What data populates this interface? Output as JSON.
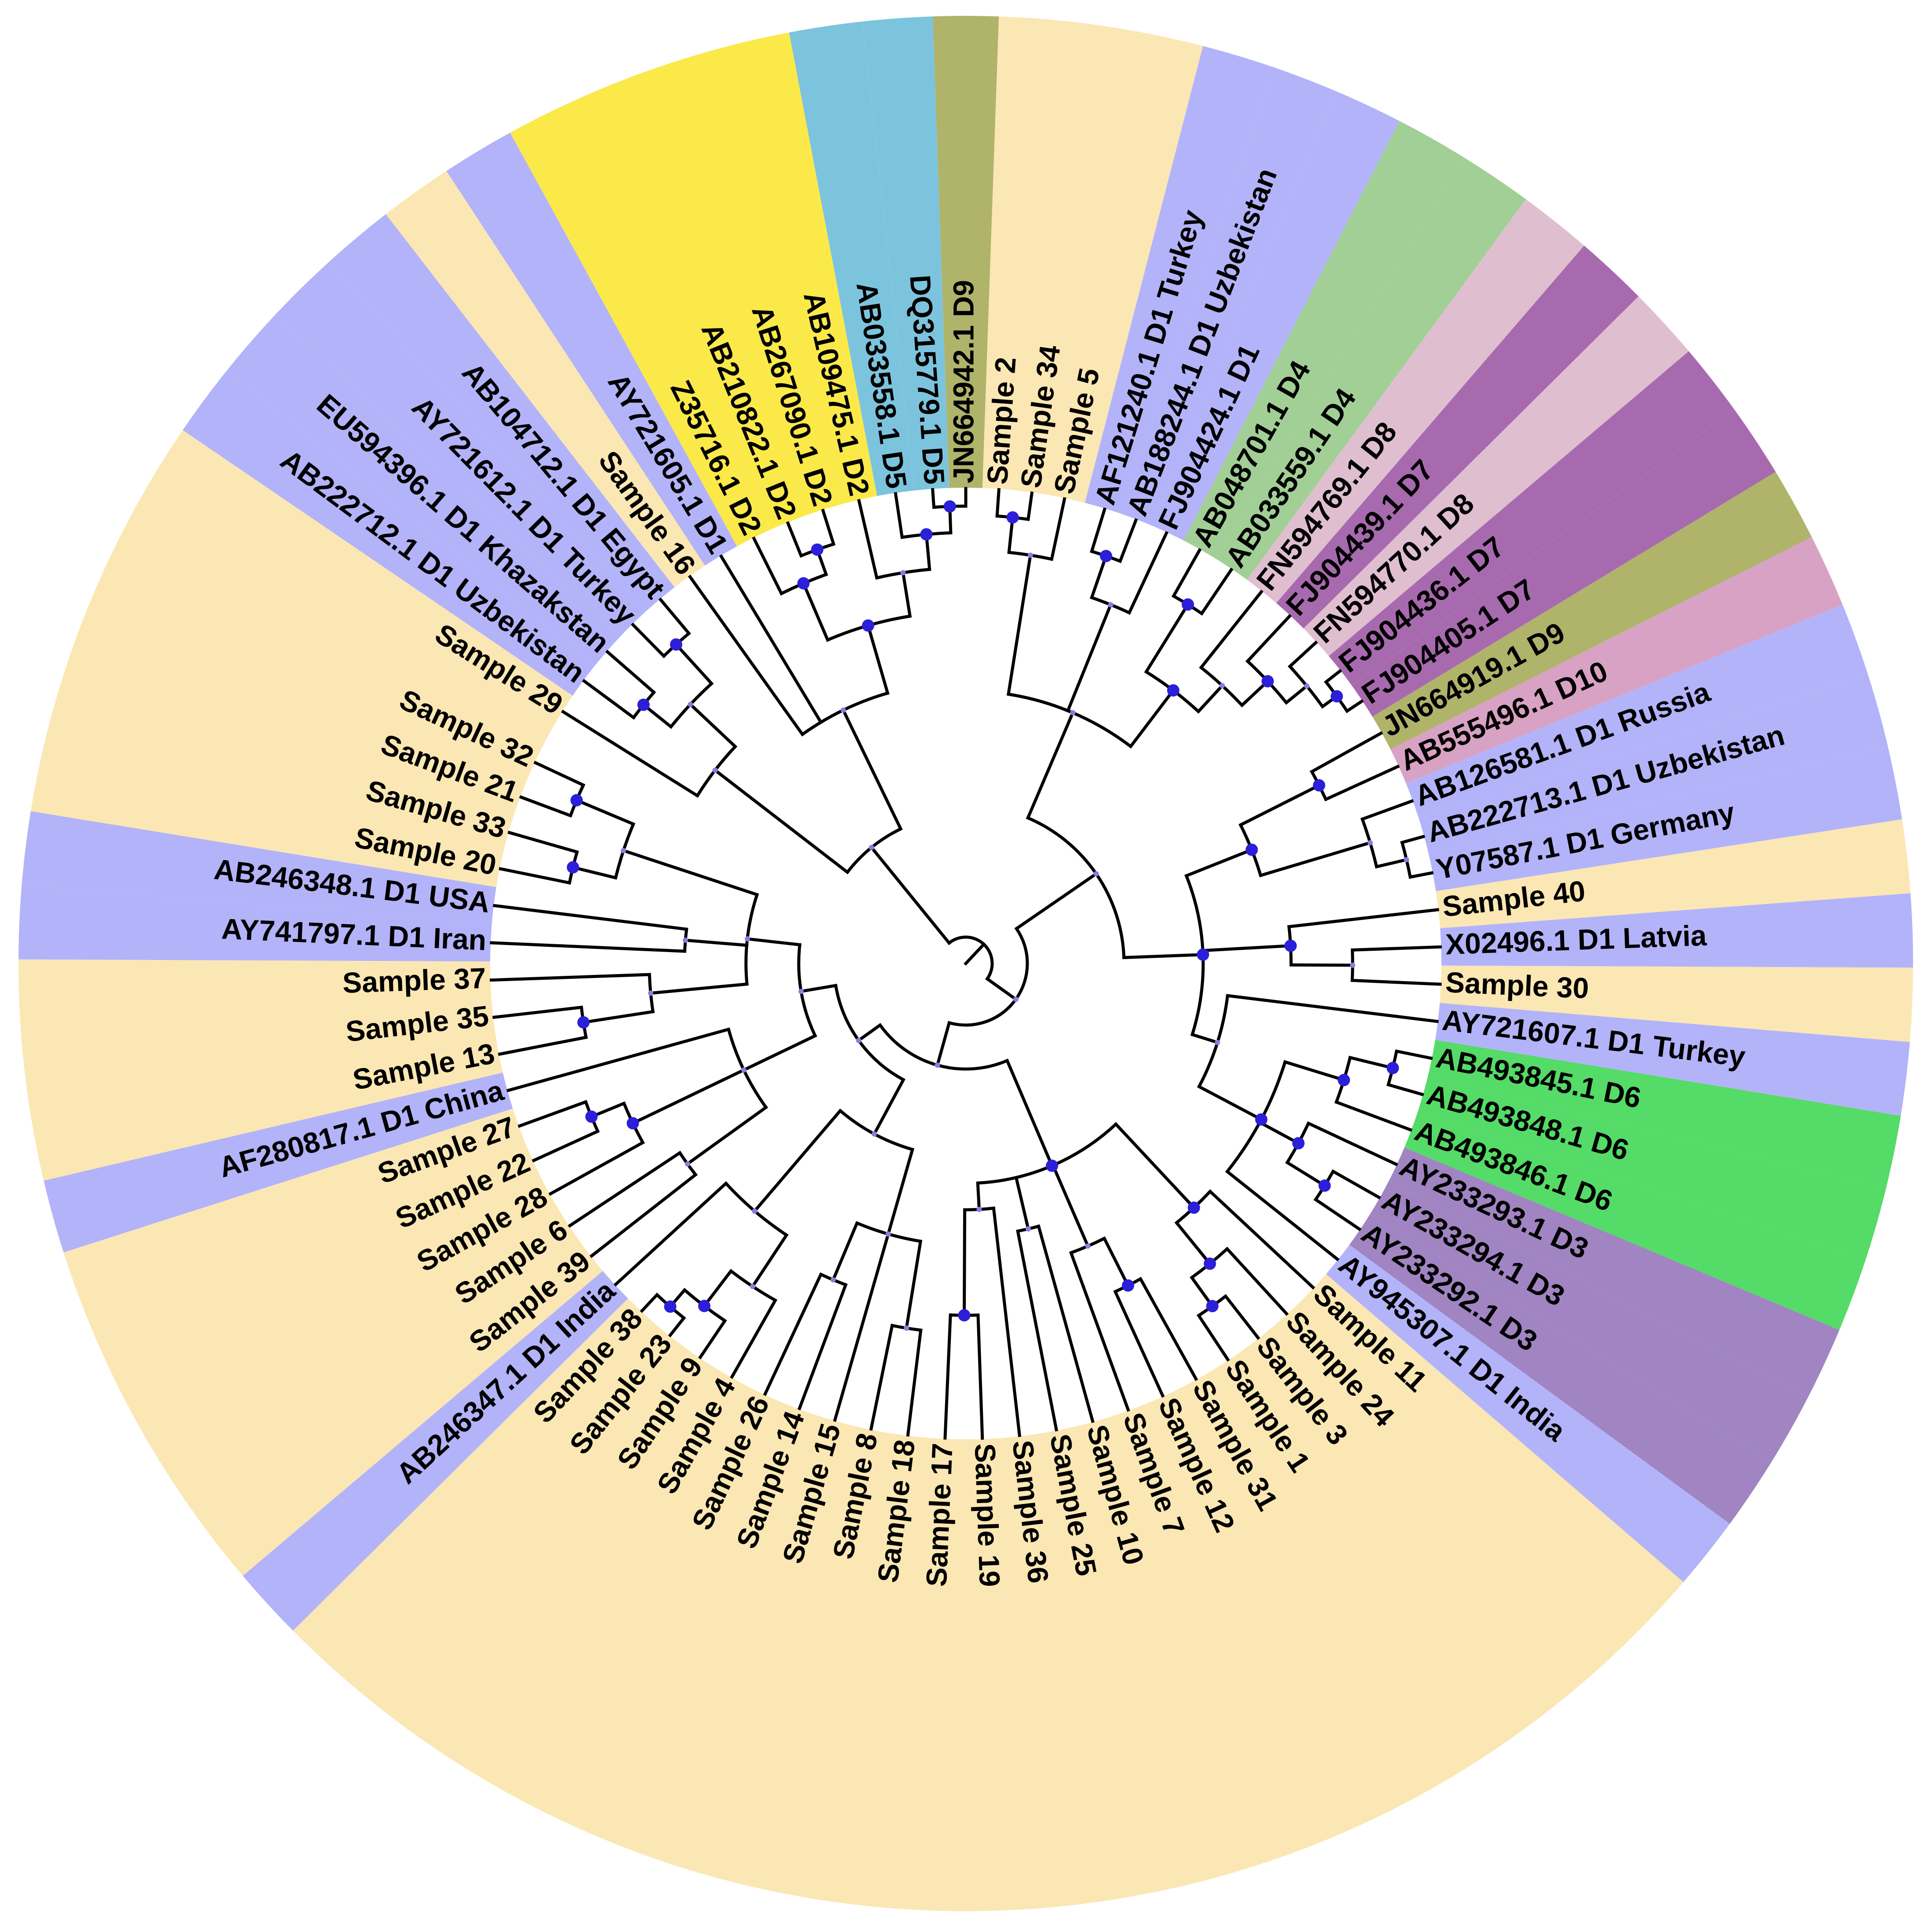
{
  "figure": {
    "type": "circular phylogenetic tree",
    "colors": {
      "D1": "#b3b3fa",
      "Sample": "#fbe7b3",
      "D2": "#fbe94a",
      "D5": "#7cc4de",
      "D9": "#b0b36a",
      "D4": "#a2cf95",
      "D8": "#dfbfcf",
      "D7": "#a86aaf",
      "D10": "#d8a2c4",
      "D6": "#55db67",
      "D3": "#a085c2",
      "node": "#2b1fd9",
      "branch": "#000000"
    }
  },
  "leaves": [
    {
      "label": "Sample 2",
      "group": "Sample",
      "angle": 4
    },
    {
      "label": "Sample 34",
      "group": "Sample",
      "angle": 8
    },
    {
      "label": "Sample 5",
      "group": "Sample",
      "angle": 12
    },
    {
      "label": "AF121240.1 D1 Turkey",
      "group": "D1",
      "angle": 17
    },
    {
      "label": "AB188244.1 D1 Uzbekistan",
      "group": "D1",
      "angle": 21
    },
    {
      "label": "FJ904424.1 D1",
      "group": "D1",
      "angle": 25
    },
    {
      "label": "AB048701.1 D4",
      "group": "D4",
      "angle": 29.5
    },
    {
      "label": "AB033559.1 D4",
      "group": "D4",
      "angle": 34
    },
    {
      "label": "FN594769.1 D8",
      "group": "D8",
      "angle": 38.5
    },
    {
      "label": "FJ904439.1 D7",
      "group": "D7",
      "angle": 43
    },
    {
      "label": "FN594770.1 D8",
      "group": "D8",
      "angle": 47.5
    },
    {
      "label": "FJ904436.1 D7",
      "group": "D7",
      "angle": 52
    },
    {
      "label": "FJ904405.1 D7",
      "group": "D7",
      "angle": 56.5
    },
    {
      "label": "JN664919.1 D9",
      "group": "D9",
      "angle": 61
    },
    {
      "label": "AB555496.1 D10",
      "group": "D10",
      "angle": 65.5
    },
    {
      "label": "AB126581.1 D1 Russia",
      "group": "D1",
      "angle": 70
    },
    {
      "label": "AB222713.1 D1 Uzbekistan",
      "group": "D1",
      "angle": 74.5
    },
    {
      "label": "Y07587.1 D1 Germany",
      "group": "D1",
      "angle": 79
    },
    {
      "label": "Sample 40",
      "group": "Sample",
      "angle": 83.5
    },
    {
      "label": "X02496.1 D1 Latvia",
      "group": "D1",
      "angle": 88
    },
    {
      "label": "Sample 30",
      "group": "Sample",
      "angle": 92.5
    },
    {
      "label": "AY721607.1 D1 Turkey",
      "group": "D1",
      "angle": 97
    },
    {
      "label": "AB493845.1 D6",
      "group": "D6",
      "angle": 101.5
    },
    {
      "label": "AB493848.1 D6",
      "group": "D6",
      "angle": 106
    },
    {
      "label": "AB493846.1 D6",
      "group": "D6",
      "angle": 110.5
    },
    {
      "label": "AY233293.1 D3",
      "group": "D3",
      "angle": 115
    },
    {
      "label": "AY233294.1 D3",
      "group": "D3",
      "angle": 119.5
    },
    {
      "label": "AY233292.1 D3",
      "group": "D3",
      "angle": 124
    },
    {
      "label": "AY945307.1 D1 India",
      "group": "D1",
      "angle": 128.5
    },
    {
      "label": "Sample 11",
      "group": "Sample",
      "angle": 133
    },
    {
      "label": "Sample 24",
      "group": "Sample",
      "angle": 137.5
    },
    {
      "label": "Sample 3",
      "group": "Sample",
      "angle": 142
    },
    {
      "label": "Sample 1",
      "group": "Sample",
      "angle": 146.5
    },
    {
      "label": "Sample 31",
      "group": "Sample",
      "angle": 151
    },
    {
      "label": "Sample 12",
      "group": "Sample",
      "angle": 155.5
    },
    {
      "label": "Sample 7",
      "group": "Sample",
      "angle": 160
    },
    {
      "label": "Sample 10",
      "group": "Sample",
      "angle": 164.5
    },
    {
      "label": "Sample 25",
      "group": "Sample",
      "angle": 169
    },
    {
      "label": "Sample 36",
      "group": "Sample",
      "angle": 173.5
    },
    {
      "label": "Sample 19",
      "group": "Sample",
      "angle": 178
    },
    {
      "label": "Sample 17",
      "group": "Sample",
      "angle": 182.5
    },
    {
      "label": "Sample 18",
      "group": "Sample",
      "angle": 187
    },
    {
      "label": "Sample 8",
      "group": "Sample",
      "angle": 191.5
    },
    {
      "label": "Sample 15",
      "group": "Sample",
      "angle": 196
    },
    {
      "label": "Sample 14",
      "group": "Sample",
      "angle": 200.5
    },
    {
      "label": "Sample 26",
      "group": "Sample",
      "angle": 205
    },
    {
      "label": "Sample 4",
      "group": "Sample",
      "angle": 209.5
    },
    {
      "label": "Sample 9",
      "group": "Sample",
      "angle": 214
    },
    {
      "label": "Sample 23",
      "group": "Sample",
      "angle": 218.5
    },
    {
      "label": "Sample 38",
      "group": "Sample",
      "angle": 223
    },
    {
      "label": "AB246347.1 D1 India",
      "group": "D1",
      "angle": 227.5
    },
    {
      "label": "Sample 39",
      "group": "Sample",
      "angle": 232
    },
    {
      "label": "Sample 6",
      "group": "Sample",
      "angle": 236.5
    },
    {
      "label": "Sample 28",
      "group": "Sample",
      "angle": 241
    },
    {
      "label": "Sample 22",
      "group": "Sample",
      "angle": 245.5
    },
    {
      "label": "Sample 27",
      "group": "Sample",
      "angle": 250
    },
    {
      "label": "AF280817.1 D1 China",
      "group": "D1",
      "angle": 254.5
    },
    {
      "label": "Sample 13",
      "group": "Sample",
      "angle": 259
    },
    {
      "label": "Sample 35",
      "group": "Sample",
      "angle": 263.5
    },
    {
      "label": "Sample 37",
      "group": "Sample",
      "angle": 268
    },
    {
      "label": "AY741797.1 D1 Iran",
      "group": "D1",
      "angle": 272.5
    },
    {
      "label": "AB246348.1 D1 USA",
      "group": "D1",
      "angle": 277
    },
    {
      "label": "Sample 20",
      "group": "Sample",
      "angle": 281.5
    },
    {
      "label": "Sample 33",
      "group": "Sample",
      "angle": 286
    },
    {
      "label": "Sample 21",
      "group": "Sample",
      "angle": 290.5
    },
    {
      "label": "Sample 32",
      "group": "Sample",
      "angle": 295
    },
    {
      "label": "Sample 29",
      "group": "Sample",
      "angle": 302
    },
    {
      "label": "AB222712.1 D1 Uzbekistan",
      "group": "D1",
      "angle": 306.5
    },
    {
      "label": "EU594396.1 D1 Khazakstan",
      "group": "D1",
      "angle": 311
    },
    {
      "label": "AY721612.1 D1 Turkey",
      "group": "D1",
      "angle": 315.5
    },
    {
      "label": "AB104712.1 D1 Egypt",
      "group": "D1",
      "angle": 320
    },
    {
      "label": "Sample 16",
      "group": "Sample",
      "angle": 324.5
    },
    {
      "label": "AY721605.1 D1",
      "group": "D1",
      "angle": 329
    },
    {
      "label": "Z35716.1 D2",
      "group": "D2",
      "angle": 333.5
    },
    {
      "label": "AB210822.1 D2",
      "group": "D2",
      "angle": 338
    },
    {
      "label": "AB267090.1 D2",
      "group": "D2",
      "angle": 342.5
    },
    {
      "label": "AB109475.1 D2",
      "group": "D2",
      "angle": 347
    },
    {
      "label": "AB033558.1 D5",
      "group": "D5",
      "angle": 351.5
    },
    {
      "label": "DQ315779.1 D5",
      "group": "D5",
      "angle": 356
    },
    {
      "label": "JN664942.1 D9",
      "group": "D9",
      "angle": 360
    }
  ]
}
